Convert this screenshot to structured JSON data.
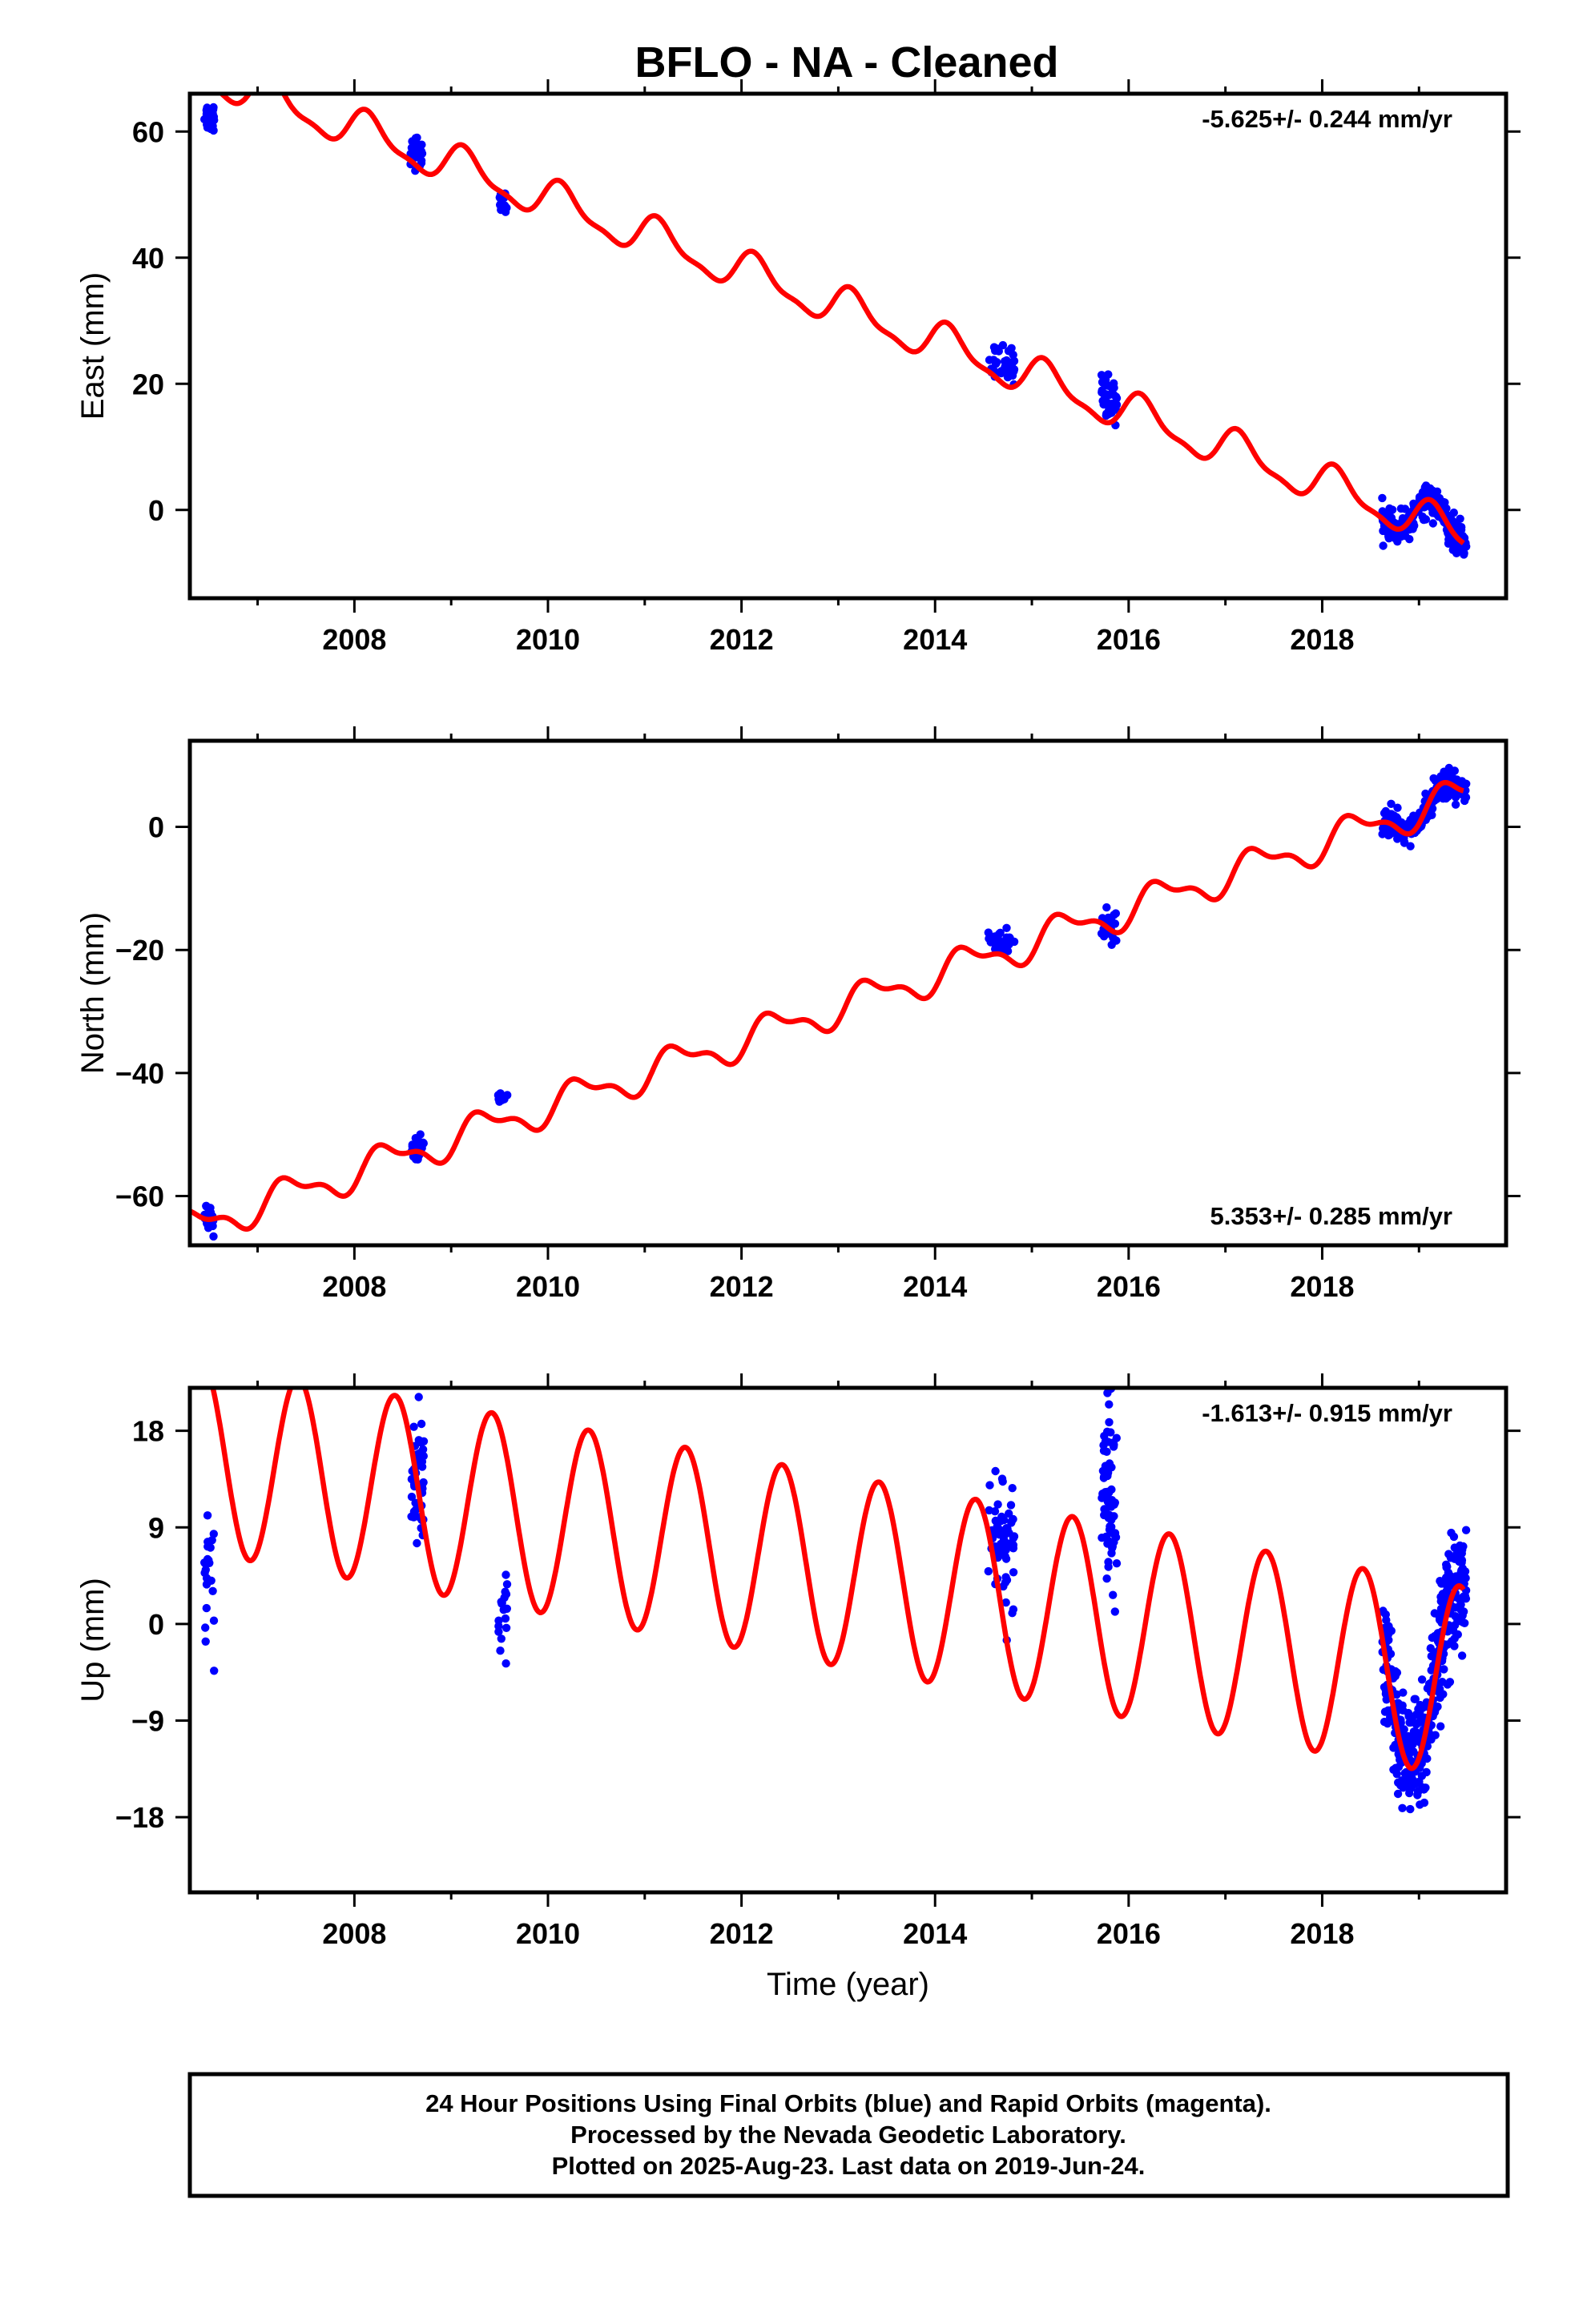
{
  "title": "BFLO  - NA - Cleaned",
  "colors": {
    "model": "#ff0000",
    "data": "#0000ff",
    "frame": "#000000"
  },
  "footer_lines": [
    "24 Hour Positions Using Final Orbits (blue) and Rapid Orbits (magenta).",
    "Processed by the Nevada Geodetic Laboratory.",
    "Plotted on 2025-Aug-23. Last data on 2019-Jun-24."
  ],
  "chart_data": [
    {
      "type": "scatter",
      "name": "east",
      "ylabel": "East (mm)",
      "xlabel": "",
      "xlim": [
        2006.3,
        2019.9
      ],
      "ylim": [
        -14,
        66
      ],
      "xticks": [
        2008,
        2010,
        2012,
        2014,
        2016,
        2018
      ],
      "yticks": [
        0,
        20,
        40,
        60
      ],
      "grid": false,
      "rate_label": "-5.625+/- 0.244 mm/yr",
      "rate_position": "top-right",
      "model": {
        "t0": 2013.0,
        "offset": 32.2,
        "rate": -5.625,
        "annual_sin": 2.4,
        "annual_cos": 1.7,
        "semi_sin": 0.9,
        "semi_cos": 0.4,
        "color": "#ff0000"
      },
      "data_clusters": [
        {
          "t_start": 2006.45,
          "t_end": 2006.55,
          "n": 30,
          "center": 62.3,
          "spread": 3.6
        },
        {
          "t_start": 2008.58,
          "t_end": 2008.72,
          "n": 25,
          "center": 57.0,
          "spread": 4.0
        },
        {
          "t_start": 2009.48,
          "t_end": 2009.58,
          "n": 15,
          "center": 48.6,
          "spread": 2.6
        },
        {
          "t_start": 2014.55,
          "t_end": 2014.82,
          "n": 35,
          "center": 23.3,
          "spread": 4.5
        },
        {
          "t_start": 2015.72,
          "t_end": 2015.88,
          "n": 35,
          "center": 17.5,
          "spread": 5.5
        },
        {
          "t_start": 2018.62,
          "t_end": 2019.49,
          "n": 260,
          "center": "model",
          "spread": 3.6
        }
      ]
    },
    {
      "type": "scatter",
      "name": "north",
      "ylabel": "North (mm)",
      "xlabel": "",
      "xlim": [
        2006.3,
        2019.9
      ],
      "ylim": [
        -68,
        14
      ],
      "xticks": [
        2008,
        2010,
        2012,
        2014,
        2016,
        2018
      ],
      "yticks": [
        -60,
        -40,
        -20,
        0
      ],
      "grid": false,
      "rate_label": "5.353+/- 0.285 mm/yr",
      "rate_position": "bottom-right",
      "model": {
        "t0": 2013.0,
        "offset": -29.4,
        "rate": 5.353,
        "annual_sin": 2.2,
        "annual_cos": -1.3,
        "semi_sin": 0.7,
        "semi_cos": -0.9,
        "color": "#ff0000"
      },
      "data_clusters": [
        {
          "t_start": 2006.45,
          "t_end": 2006.55,
          "n": 25,
          "center": -64.0,
          "spread": 3.0
        },
        {
          "t_start": 2008.58,
          "t_end": 2008.72,
          "n": 20,
          "center": -52.2,
          "spread": 3.0
        },
        {
          "t_start": 2009.48,
          "t_end": 2009.58,
          "n": 12,
          "center": -44.0,
          "spread": 2.2
        },
        {
          "t_start": 2014.55,
          "t_end": 2014.82,
          "n": 35,
          "center": -18.6,
          "spread": 3.4
        },
        {
          "t_start": 2015.72,
          "t_end": 2015.88,
          "n": 25,
          "center": -16.6,
          "spread": 5.0
        },
        {
          "t_start": 2018.62,
          "t_end": 2019.49,
          "n": 260,
          "center": "model",
          "spread": 3.2
        }
      ]
    },
    {
      "type": "scatter",
      "name": "up",
      "ylabel": "Up (mm)",
      "xlabel": "Time (year)",
      "xlim": [
        2006.3,
        2019.9
      ],
      "ylim": [
        -25,
        22
      ],
      "xticks": [
        2008,
        2010,
        2012,
        2014,
        2016,
        2018
      ],
      "yticks": [
        -18,
        -9,
        0,
        9,
        18
      ],
      "grid": false,
      "rate_label": "-1.613+/- 0.915 mm/yr",
      "rate_position": "top-right",
      "model": {
        "t0": 2013.0,
        "offset": 5.0,
        "rate": -1.613,
        "annual_sin": 4.3,
        "annual_cos": -7.8,
        "semi_sin": 0.0,
        "semi_cos": 0.0,
        "color": "#ff0000"
      },
      "data_clusters": [
        {
          "t_start": 2006.45,
          "t_end": 2006.55,
          "n": 22,
          "center": 4.0,
          "spread": 12.0
        },
        {
          "t_start": 2008.58,
          "t_end": 2008.72,
          "n": 45,
          "center": 13.5,
          "spread": 9.0
        },
        {
          "t_start": 2009.48,
          "t_end": 2009.58,
          "n": 18,
          "center": 1.5,
          "spread": 9.0
        },
        {
          "t_start": 2014.55,
          "t_end": 2014.82,
          "n": 60,
          "center": 8.0,
          "spread": 10.0
        },
        {
          "t_start": 2015.72,
          "t_end": 2015.88,
          "n": 70,
          "center": 12.5,
          "spread": 13.0
        },
        {
          "t_start": 2018.62,
          "t_end": 2019.49,
          "n": 380,
          "center": "model",
          "spread": 8.5
        }
      ]
    }
  ]
}
